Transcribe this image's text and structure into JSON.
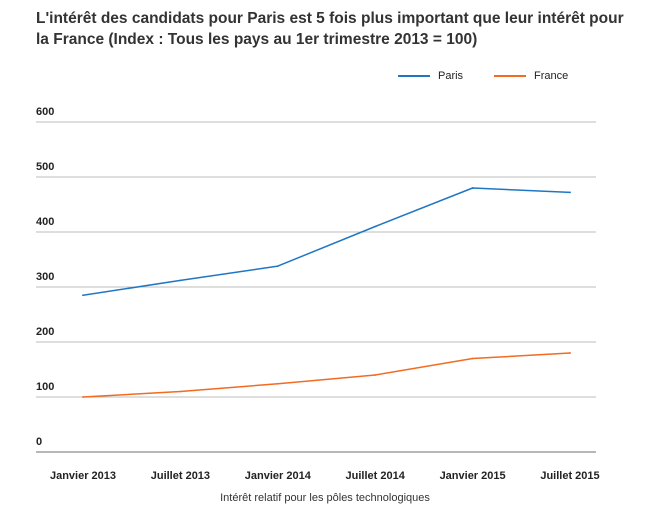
{
  "title": "L'intérêt des candidats pour Paris est 5 fois plus important que leur intérêt pour la France (Index : Tous les pays au 1er trimestre 2013 = 100)",
  "chart_data": {
    "type": "line",
    "title": "L'intérêt des candidats pour Paris est 5 fois plus important que leur intérêt pour la France (Index : Tous les pays au 1er trimestre 2013 = 100)",
    "xlabel": "Intérêt relatif pour les pôles technologiques",
    "ylabel": "",
    "categories": [
      "Janvier 2013",
      "Juillet 2013",
      "Janvier 2014",
      "Juillet 2014",
      "Janvier 2015",
      "Juillet 2015"
    ],
    "yticks": [
      0,
      100,
      200,
      300,
      400,
      500,
      600
    ],
    "ylim": [
      0,
      600
    ],
    "grid": true,
    "legend_position": "top-right",
    "series": [
      {
        "name": "Paris",
        "color": "#1f77c4",
        "values": [
          285,
          312,
          338,
          410,
          480,
          472
        ]
      },
      {
        "name": "France",
        "color": "#f26b21",
        "values": [
          100,
          110,
          124,
          140,
          170,
          180
        ]
      }
    ]
  }
}
